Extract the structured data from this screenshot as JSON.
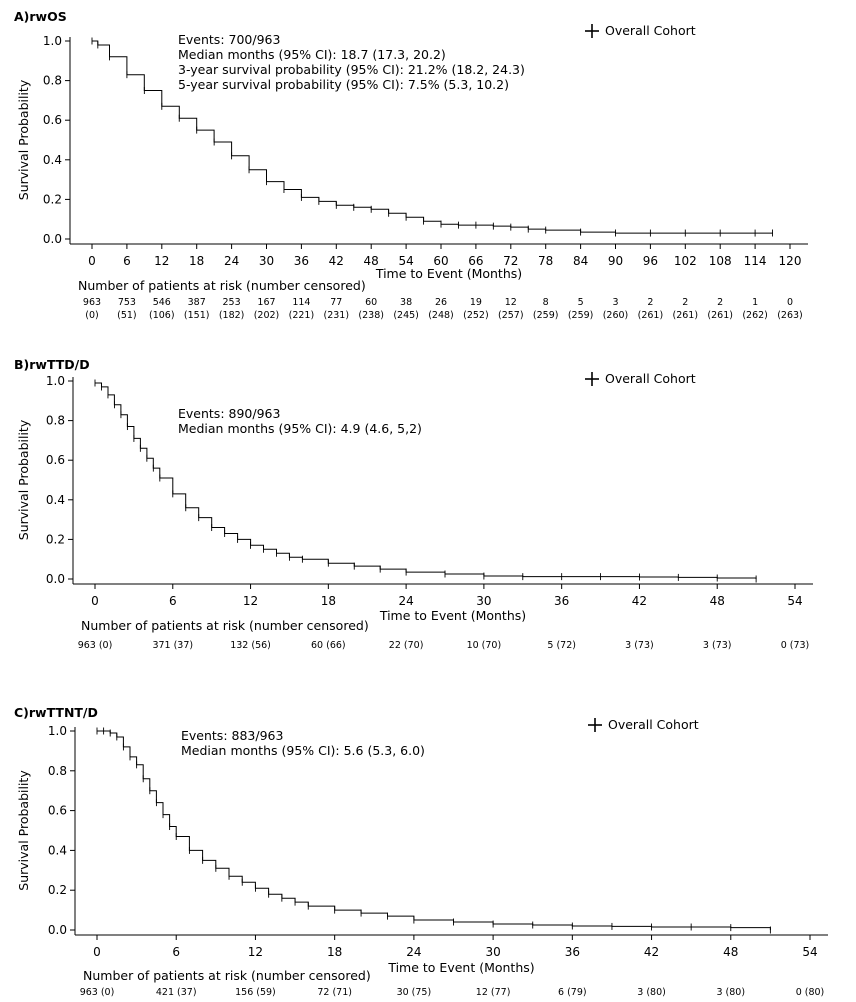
{
  "chart_data": [
    {
      "type": "line",
      "panel_label": "A)",
      "title": "rwOS",
      "xlabel": "Time to Event (Months)",
      "ylabel": "Survival Probability",
      "xlim": [
        0,
        120
      ],
      "ylim": [
        0,
        1
      ],
      "xticks": [
        "0",
        "6",
        "12",
        "18",
        "24",
        "30",
        "36",
        "42",
        "48",
        "54",
        "60",
        "66",
        "72",
        "78",
        "84",
        "90",
        "96",
        "102",
        "108",
        "114",
        "120"
      ],
      "yticks": [
        "0.0",
        "0.2",
        "0.4",
        "0.6",
        "0.8",
        "1.0"
      ],
      "legend": "Overall Cohort",
      "legend_position": "top-right",
      "annotations": [
        "Events: 700/963",
        "Median months (95% CI): 18.7 (17.3, 20.2)",
        "3-year survival probability (95% CI): 21.2% (18.2, 24.3)",
        "5-year survival probability (95% CI): 7.5% (5.3, 10.2)"
      ],
      "series": [
        {
          "name": "Overall Cohort",
          "x": [
            0,
            1,
            3,
            6,
            9,
            12,
            15,
            18,
            21,
            24,
            27,
            30,
            33,
            36,
            39,
            42,
            45,
            48,
            51,
            54,
            57,
            60,
            63,
            66,
            69,
            72,
            75,
            78,
            84,
            90,
            96,
            102,
            108,
            114,
            117
          ],
          "y": [
            1.0,
            0.98,
            0.92,
            0.83,
            0.75,
            0.67,
            0.61,
            0.55,
            0.49,
            0.42,
            0.35,
            0.29,
            0.25,
            0.21,
            0.19,
            0.17,
            0.16,
            0.15,
            0.13,
            0.11,
            0.09,
            0.075,
            0.07,
            0.07,
            0.065,
            0.06,
            0.05,
            0.045,
            0.035,
            0.03,
            0.03,
            0.03,
            0.03,
            0.03,
            0.03
          ]
        }
      ],
      "risk_table": {
        "title": "Number of patients at risk (number censored)",
        "times": [
          0,
          6,
          12,
          18,
          24,
          30,
          36,
          42,
          48,
          54,
          60,
          66,
          72,
          78,
          84,
          90,
          96,
          102,
          108,
          114,
          120
        ],
        "at_risk": [
          "963",
          "753",
          "546",
          "387",
          "253",
          "167",
          "114",
          "77",
          "60",
          "38",
          "26",
          "19",
          "12",
          "8",
          "5",
          "3",
          "2",
          "2",
          "2",
          "1",
          "0"
        ],
        "censored": [
          "(0)",
          "(51)",
          "(106)",
          "(151)",
          "(182)",
          "(202)",
          "(221)",
          "(231)",
          "(238)",
          "(245)",
          "(248)",
          "(252)",
          "(257)",
          "(259)",
          "(259)",
          "(260)",
          "(261)",
          "(261)",
          "(261)",
          "(262)",
          "(263)"
        ]
      }
    },
    {
      "type": "line",
      "panel_label": "B)",
      "title": "rwTTD/D",
      "xlabel": "Time to Event (Months)",
      "ylabel": "Survival Probability",
      "xlim": [
        0,
        54
      ],
      "ylim": [
        0,
        1
      ],
      "xticks": [
        "0",
        "6",
        "12",
        "18",
        "24",
        "30",
        "36",
        "42",
        "48",
        "54"
      ],
      "yticks": [
        "0.0",
        "0.2",
        "0.4",
        "0.6",
        "0.8",
        "1.0"
      ],
      "legend": "Overall Cohort",
      "legend_position": "top-right",
      "annotations": [
        "Events: 890/963",
        "Median months (95% CI): 4.9 (4.6, 5,2)"
      ],
      "series": [
        {
          "name": "Overall Cohort",
          "x": [
            0,
            0.5,
            1,
            1.5,
            2,
            2.5,
            3,
            3.5,
            4,
            4.5,
            5,
            6,
            7,
            8,
            9,
            10,
            11,
            12,
            13,
            14,
            15,
            16,
            18,
            20,
            22,
            24,
            27,
            30,
            33,
            36,
            39,
            42,
            45,
            48,
            51
          ],
          "y": [
            0.99,
            0.97,
            0.93,
            0.88,
            0.83,
            0.77,
            0.71,
            0.66,
            0.61,
            0.56,
            0.51,
            0.43,
            0.36,
            0.31,
            0.26,
            0.23,
            0.2,
            0.17,
            0.15,
            0.13,
            0.11,
            0.1,
            0.08,
            0.065,
            0.05,
            0.035,
            0.025,
            0.015,
            0.012,
            0.012,
            0.012,
            0.01,
            0.008,
            0.005,
            0.0
          ]
        }
      ],
      "risk_table": {
        "title": "Number of patients at risk (number censored)",
        "times": [
          0,
          6,
          12,
          18,
          24,
          30,
          36,
          42,
          48,
          54
        ],
        "labels": [
          "963 (0)",
          "371 (37)",
          "132 (56)",
          "60 (66)",
          "22 (70)",
          "10 (70)",
          "5 (72)",
          "3 (73)",
          "3 (73)",
          "0 (73)"
        ]
      }
    },
    {
      "type": "line",
      "panel_label": "C)",
      "title": "rwTTNT/D",
      "xlabel": "Time to Event (Months)",
      "ylabel": "Survival Probability",
      "xlim": [
        0,
        54
      ],
      "ylim": [
        0,
        1
      ],
      "xticks": [
        "0",
        "6",
        "12",
        "18",
        "24",
        "30",
        "36",
        "42",
        "48",
        "54"
      ],
      "yticks": [
        "0.0",
        "0.2",
        "0.4",
        "0.6",
        "0.8",
        "1.0"
      ],
      "legend": "Overall Cohort",
      "legend_position": "top-right",
      "annotations": [
        "Events: 883/963",
        "Median months (95% CI): 5.6 (5.3, 6.0)"
      ],
      "series": [
        {
          "name": "Overall Cohort",
          "x": [
            0,
            0.5,
            1,
            1.5,
            2,
            2.5,
            3,
            3.5,
            4,
            4.5,
            5,
            5.5,
            6,
            7,
            8,
            9,
            10,
            11,
            12,
            13,
            14,
            15,
            16,
            18,
            20,
            22,
            24,
            27,
            30,
            33,
            36,
            39,
            42,
            45,
            48,
            51
          ],
          "y": [
            1.0,
            1.0,
            0.99,
            0.97,
            0.92,
            0.87,
            0.83,
            0.76,
            0.7,
            0.64,
            0.58,
            0.52,
            0.47,
            0.4,
            0.35,
            0.31,
            0.27,
            0.24,
            0.21,
            0.18,
            0.16,
            0.14,
            0.12,
            0.1,
            0.085,
            0.07,
            0.05,
            0.04,
            0.03,
            0.025,
            0.02,
            0.018,
            0.015,
            0.015,
            0.012,
            0.0
          ]
        }
      ],
      "risk_table": {
        "title": "Number of patients at risk (number censored)",
        "times": [
          0,
          6,
          12,
          18,
          24,
          30,
          36,
          42,
          48,
          54
        ],
        "labels": [
          "963 (0)",
          "421 (37)",
          "156 (59)",
          "72 (71)",
          "30 (75)",
          "12 (77)",
          "6 (79)",
          "3 (80)",
          "3 (80)",
          "0 (80)"
        ]
      }
    }
  ]
}
